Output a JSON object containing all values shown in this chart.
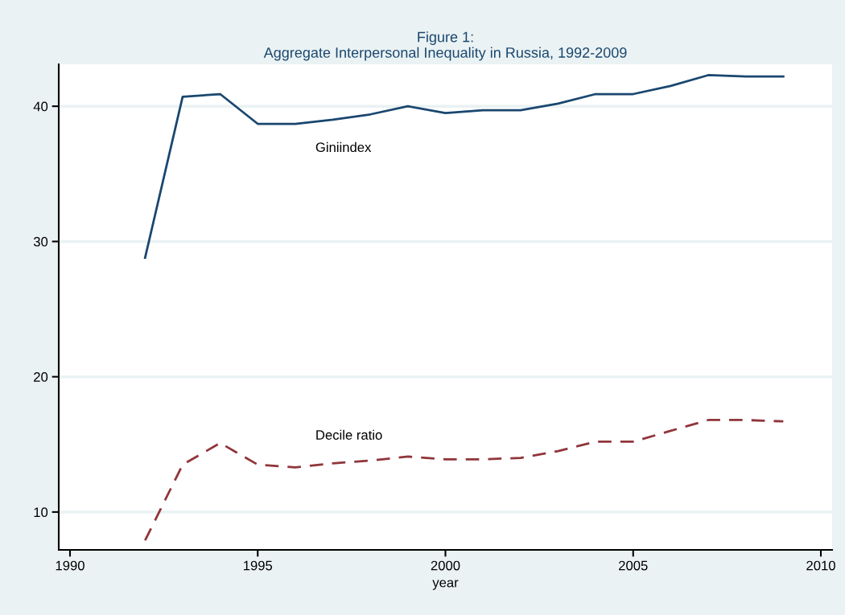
{
  "chart_data": {
    "type": "line",
    "title": "Figure 1:\nAggregate Interpersonal Inequality in Russia, 1992-2009",
    "xlabel": "year",
    "x": [
      1992,
      1993,
      1994,
      1995,
      1996,
      1997,
      1998,
      1999,
      2000,
      2001,
      2002,
      2003,
      2004,
      2005,
      2006,
      2007,
      2008,
      2009
    ],
    "series": [
      {
        "name": "Giniindex",
        "color": "#1a476f",
        "line_style": "solid",
        "values": [
          28.8,
          40.7,
          40.9,
          38.7,
          38.7,
          39.0,
          39.4,
          40.0,
          39.5,
          39.7,
          39.7,
          40.2,
          40.9,
          40.9,
          41.5,
          42.3,
          42.2,
          42.2
        ]
      },
      {
        "name": "Decile ratio",
        "color": "#90353b",
        "line_style": "dashed",
        "values": [
          7.9,
          13.5,
          15.1,
          13.5,
          13.3,
          13.6,
          13.8,
          14.1,
          13.9,
          13.9,
          14.0,
          14.5,
          15.2,
          15.2,
          16.0,
          16.8,
          16.8,
          16.7
        ]
      }
    ],
    "xlim": [
      1989.7,
      2010.3
    ],
    "xticks": [
      1990,
      1995,
      2000,
      2005,
      2010
    ],
    "ylim": [
      7.2,
      43.1
    ],
    "yticks": [
      10,
      20,
      30,
      40
    ],
    "grid": "y",
    "legend": false
  }
}
